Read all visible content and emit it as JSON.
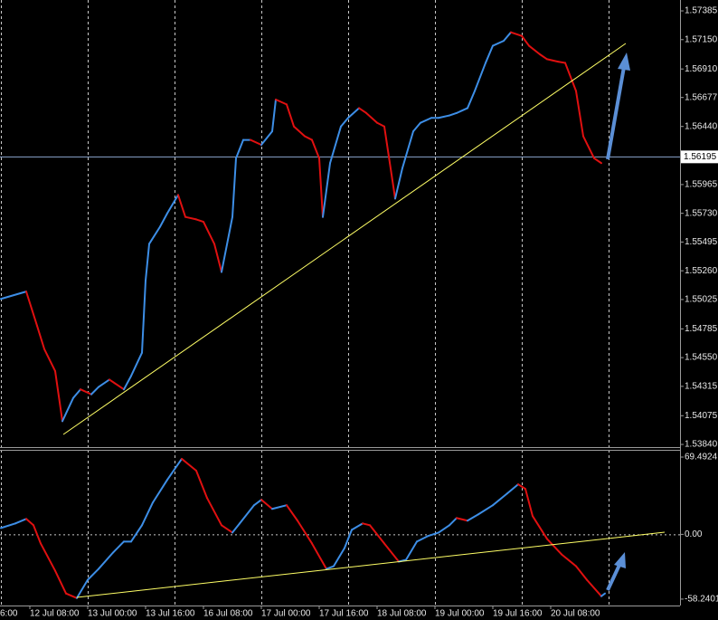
{
  "chart_data": [
    {
      "type": "line",
      "up_color": "#3d8ee6",
      "down_color": "#e01010",
      "xlim": [
        -8.25,
        179.75
      ],
      "ylim": [
        1.53818,
        1.57474
      ],
      "xgrid": [
        -8,
        16,
        40,
        64,
        88,
        112,
        136,
        160
      ],
      "yticks": [
        {
          "value": 1.57385,
          "label": "1.57385"
        },
        {
          "value": 1.5715,
          "label": "1.57150"
        },
        {
          "value": 1.5691,
          "label": "1.56910"
        },
        {
          "value": 1.56677,
          "label": "1.56677"
        },
        {
          "value": 1.5644,
          "label": "1.56440"
        },
        {
          "value": 1.55965,
          "label": "1.55965"
        },
        {
          "value": 1.5573,
          "label": "1.55730"
        },
        {
          "value": 1.55495,
          "label": "1.55495"
        },
        {
          "value": 1.5526,
          "label": "1.55260"
        },
        {
          "value": 1.55025,
          "label": "1.55025"
        },
        {
          "value": 1.54785,
          "label": "1.54785"
        },
        {
          "value": 1.5455,
          "label": "1.54550"
        },
        {
          "value": 1.54315,
          "label": "1.54315"
        },
        {
          "value": 1.54075,
          "label": "1.54075"
        },
        {
          "value": 1.5384,
          "label": "1.53840"
        }
      ],
      "current_price": {
        "value": 1.56195,
        "label": "1.56195"
      },
      "x": [
        -8,
        -1,
        2,
        4,
        7,
        9,
        12,
        14,
        17,
        19,
        22,
        26,
        28,
        31,
        32,
        33,
        36,
        38,
        41,
        43,
        46,
        48,
        51,
        53,
        56,
        57,
        59,
        61,
        64,
        67,
        68,
        71,
        73,
        76,
        78,
        80,
        81,
        83,
        86,
        88,
        91,
        93,
        96,
        98,
        101,
        103,
        106,
        108,
        111,
        113,
        116,
        118,
        121,
        123,
        126,
        128,
        131,
        133,
        136,
        138,
        141,
        143,
        146,
        148,
        151,
        153,
        156,
        158
      ],
      "values": [
        1.5503,
        1.5509,
        1.5481,
        1.5462,
        1.5444,
        1.5403,
        1.5422,
        1.5429,
        1.5425,
        1.5431,
        1.5437,
        1.5429,
        1.544,
        1.5459,
        1.5518,
        1.5548,
        1.5562,
        1.5573,
        1.5588,
        1.557,
        1.5568,
        1.5566,
        1.5548,
        1.5525,
        1.557,
        1.5618,
        1.5633,
        1.5633,
        1.5629,
        1.564,
        1.5666,
        1.5662,
        1.5644,
        1.5636,
        1.5633,
        1.5618,
        1.557,
        1.5614,
        1.5644,
        1.5651,
        1.5659,
        1.5655,
        1.5647,
        1.5644,
        1.5585,
        1.561,
        1.564,
        1.5647,
        1.5651,
        1.5651,
        1.5653,
        1.5655,
        1.5659,
        1.5673,
        1.5696,
        1.571,
        1.5714,
        1.5721,
        1.5718,
        1.571,
        1.5703,
        1.5699,
        1.5697,
        1.5696,
        1.5673,
        1.5636,
        1.5618,
        1.5614
      ]
    },
    {
      "type": "line",
      "up_color": "#3d8ee6",
      "down_color": "#e01010",
      "xlim": [
        -8.25,
        179.75
      ],
      "ylim": [
        -64,
        76
      ],
      "xgrid": [
        -8,
        16,
        40,
        64,
        88,
        112,
        136,
        160
      ],
      "ygrid": [
        0
      ],
      "yticks": [
        {
          "value": 69.4924,
          "label": "69.4924"
        },
        {
          "value": 0,
          "label": "0.00"
        },
        {
          "value": -58.2401,
          "label": "-58.2401"
        }
      ],
      "xticks": [
        {
          "value": -16,
          "label": "6:00"
        },
        {
          "value": 0,
          "label": "12 Jul 08:00"
        },
        {
          "value": 16,
          "label": "13 Jul 00:00"
        },
        {
          "value": 32,
          "label": "13 Jul 16:00"
        },
        {
          "value": 48,
          "label": "16 Jul 08:00"
        },
        {
          "value": 64,
          "label": "17 Jul 00:00"
        },
        {
          "value": 80,
          "label": "17 Jul 16:00"
        },
        {
          "value": 96,
          "label": "18 Jul 08:00"
        },
        {
          "value": 112,
          "label": "19 Jul 00:00"
        },
        {
          "value": 128,
          "label": "19 Jul 16:00"
        },
        {
          "value": 144,
          "label": "20 Jul 08:00"
        }
      ],
      "x": [
        -8,
        -4,
        -1,
        1,
        3,
        7,
        10,
        13,
        16,
        19,
        23,
        26,
        28,
        31,
        34,
        38,
        42,
        46,
        49,
        53,
        56,
        58,
        62,
        64,
        67,
        71,
        74,
        78,
        82,
        84,
        87,
        89,
        92,
        94,
        98,
        102,
        104,
        107,
        110,
        113,
        116,
        118,
        121,
        124,
        128,
        132,
        135,
        137,
        139,
        143,
        147,
        151,
        154,
        158,
        159
      ],
      "values": [
        5.7,
        9.8,
        13.9,
        8.2,
        -8.2,
        -32.7,
        -53.2,
        -57.3,
        -40.9,
        -31.1,
        -16.4,
        -6.5,
        -6.5,
        8.2,
        28.6,
        49.1,
        67.9,
        57.3,
        32.7,
        8.2,
        1.6,
        9.8,
        26.2,
        31.1,
        22.9,
        26.2,
        12.3,
        -8.2,
        -31.1,
        -28.6,
        -12.3,
        4.1,
        9.8,
        8.2,
        -8.2,
        -24.5,
        -22.9,
        -6.5,
        -1.6,
        1.6,
        8.2,
        14.7,
        12.3,
        18.0,
        26.2,
        36.8,
        45.0,
        40.9,
        16.4,
        -4.1,
        -18.0,
        -28.6,
        -40.9,
        -55.6,
        -53.2
      ]
    }
  ]
}
